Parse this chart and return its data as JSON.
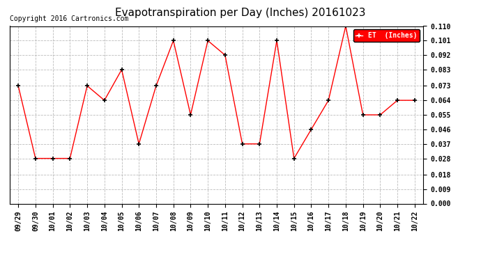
{
  "title": "Evapotranspiration per Day (Inches) 20161023",
  "copyright": "Copyright 2016 Cartronics.com",
  "legend_label": "ET  (Inches)",
  "x_labels": [
    "09/29",
    "09/30",
    "10/01",
    "10/02",
    "10/03",
    "10/04",
    "10/05",
    "10/06",
    "10/07",
    "10/08",
    "10/09",
    "10/10",
    "10/11",
    "10/12",
    "10/13",
    "10/14",
    "10/15",
    "10/16",
    "10/17",
    "10/18",
    "10/19",
    "10/20",
    "10/21",
    "10/22"
  ],
  "y_values": [
    0.073,
    0.028,
    0.028,
    0.028,
    0.073,
    0.064,
    0.083,
    0.037,
    0.073,
    0.101,
    0.055,
    0.101,
    0.092,
    0.037,
    0.037,
    0.101,
    0.028,
    0.046,
    0.064,
    0.11,
    0.055,
    0.055,
    0.064,
    0.064
  ],
  "ylim": [
    0.0,
    0.11
  ],
  "yticks": [
    0.0,
    0.009,
    0.018,
    0.028,
    0.037,
    0.046,
    0.055,
    0.064,
    0.073,
    0.083,
    0.092,
    0.101,
    0.11
  ],
  "line_color": "red",
  "marker_color": "black",
  "background_color": "#ffffff",
  "grid_color": "#aaaaaa",
  "title_fontsize": 11,
  "copyright_fontsize": 7,
  "legend_bg": "red",
  "legend_text_color": "white",
  "figwidth": 6.9,
  "figheight": 3.75,
  "dpi": 100
}
